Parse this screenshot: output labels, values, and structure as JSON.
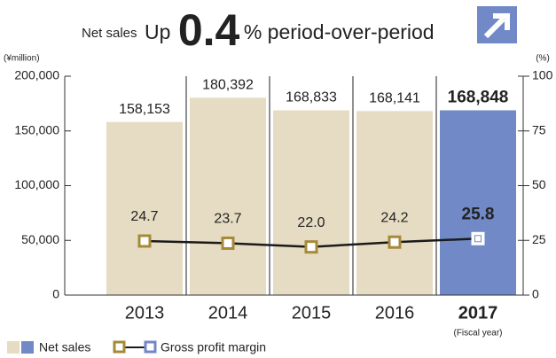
{
  "chart_data": {
    "type": "bar-line",
    "headline": {
      "label": "Net sales",
      "prefix": "Up",
      "figure": "0.4",
      "suffix": "% period-over-period"
    },
    "y_axis_label": "(¥million)",
    "y2_axis_label": "(%)",
    "x_axis_label": "(Fiscal year)",
    "categories": [
      "2013",
      "2014",
      "2015",
      "2016",
      "2017"
    ],
    "highlight": "2017",
    "series": [
      {
        "name": "Net sales",
        "color": "#e6dcc3",
        "highlight_color": "#7289c8",
        "values": [
          158153,
          180392,
          168833,
          168141,
          168848
        ],
        "value_labels": [
          "158,153",
          "180,392",
          "168,833",
          "168,141",
          "168,848"
        ]
      },
      {
        "name": "Gross profit margin",
        "axis": "y2",
        "color": "#1a1a1a",
        "marker_color": "#a58a3a",
        "highlight_color": "#7289c8",
        "values": [
          24.7,
          23.7,
          22.0,
          24.2,
          25.8
        ],
        "value_labels": [
          "24.7",
          "23.7",
          "22.0",
          "24.2",
          "25.8"
        ]
      }
    ],
    "ylim": [
      0,
      200000
    ],
    "yticks": [
      0,
      {
        "value": 50000,
        "label": "50,000"
      },
      {
        "value": 100000,
        "label": "100,000"
      },
      {
        "value": 150000,
        "label": "150,000"
      },
      {
        "value": 200000,
        "label": "200,000"
      }
    ],
    "y2lim": [
      0,
      100
    ],
    "y2ticks": [
      0,
      25,
      50,
      75,
      100
    ]
  }
}
